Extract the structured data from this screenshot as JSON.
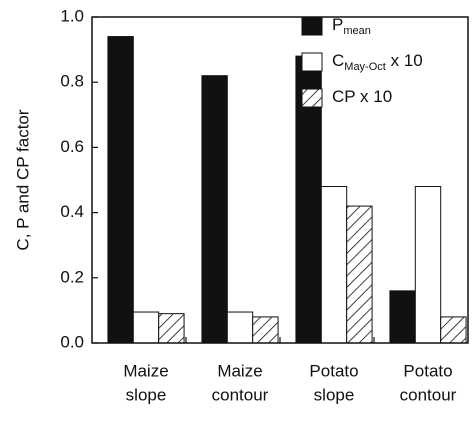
{
  "chart_data": {
    "type": "bar",
    "y_label": "C, P and CP factor",
    "categories": [
      [
        "Maize",
        "slope"
      ],
      [
        "Maize",
        "contour"
      ],
      [
        "Potato",
        "slope"
      ],
      [
        "Potato",
        "contour"
      ]
    ],
    "series": [
      {
        "name": "P",
        "name_sub": "mean",
        "color": "#111111",
        "values": [
          0.94,
          0.82,
          0.88,
          0.16
        ]
      },
      {
        "name": "C",
        "name_sub": "May-Oct",
        "name_suffix": " x 10",
        "color": "#ffffff",
        "values": [
          0.095,
          0.095,
          0.48,
          0.48
        ]
      },
      {
        "name": "CP x 10",
        "color": "hatch",
        "values": [
          0.09,
          0.08,
          0.42,
          0.08
        ]
      }
    ],
    "ylim": [
      0,
      1
    ],
    "yticks": [
      {
        "value": 0,
        "label": "0.0"
      },
      0.2,
      0.4,
      0.6,
      0.8,
      {
        "value": 1,
        "label": "1.0"
      }
    ],
    "legend": "top-right"
  }
}
